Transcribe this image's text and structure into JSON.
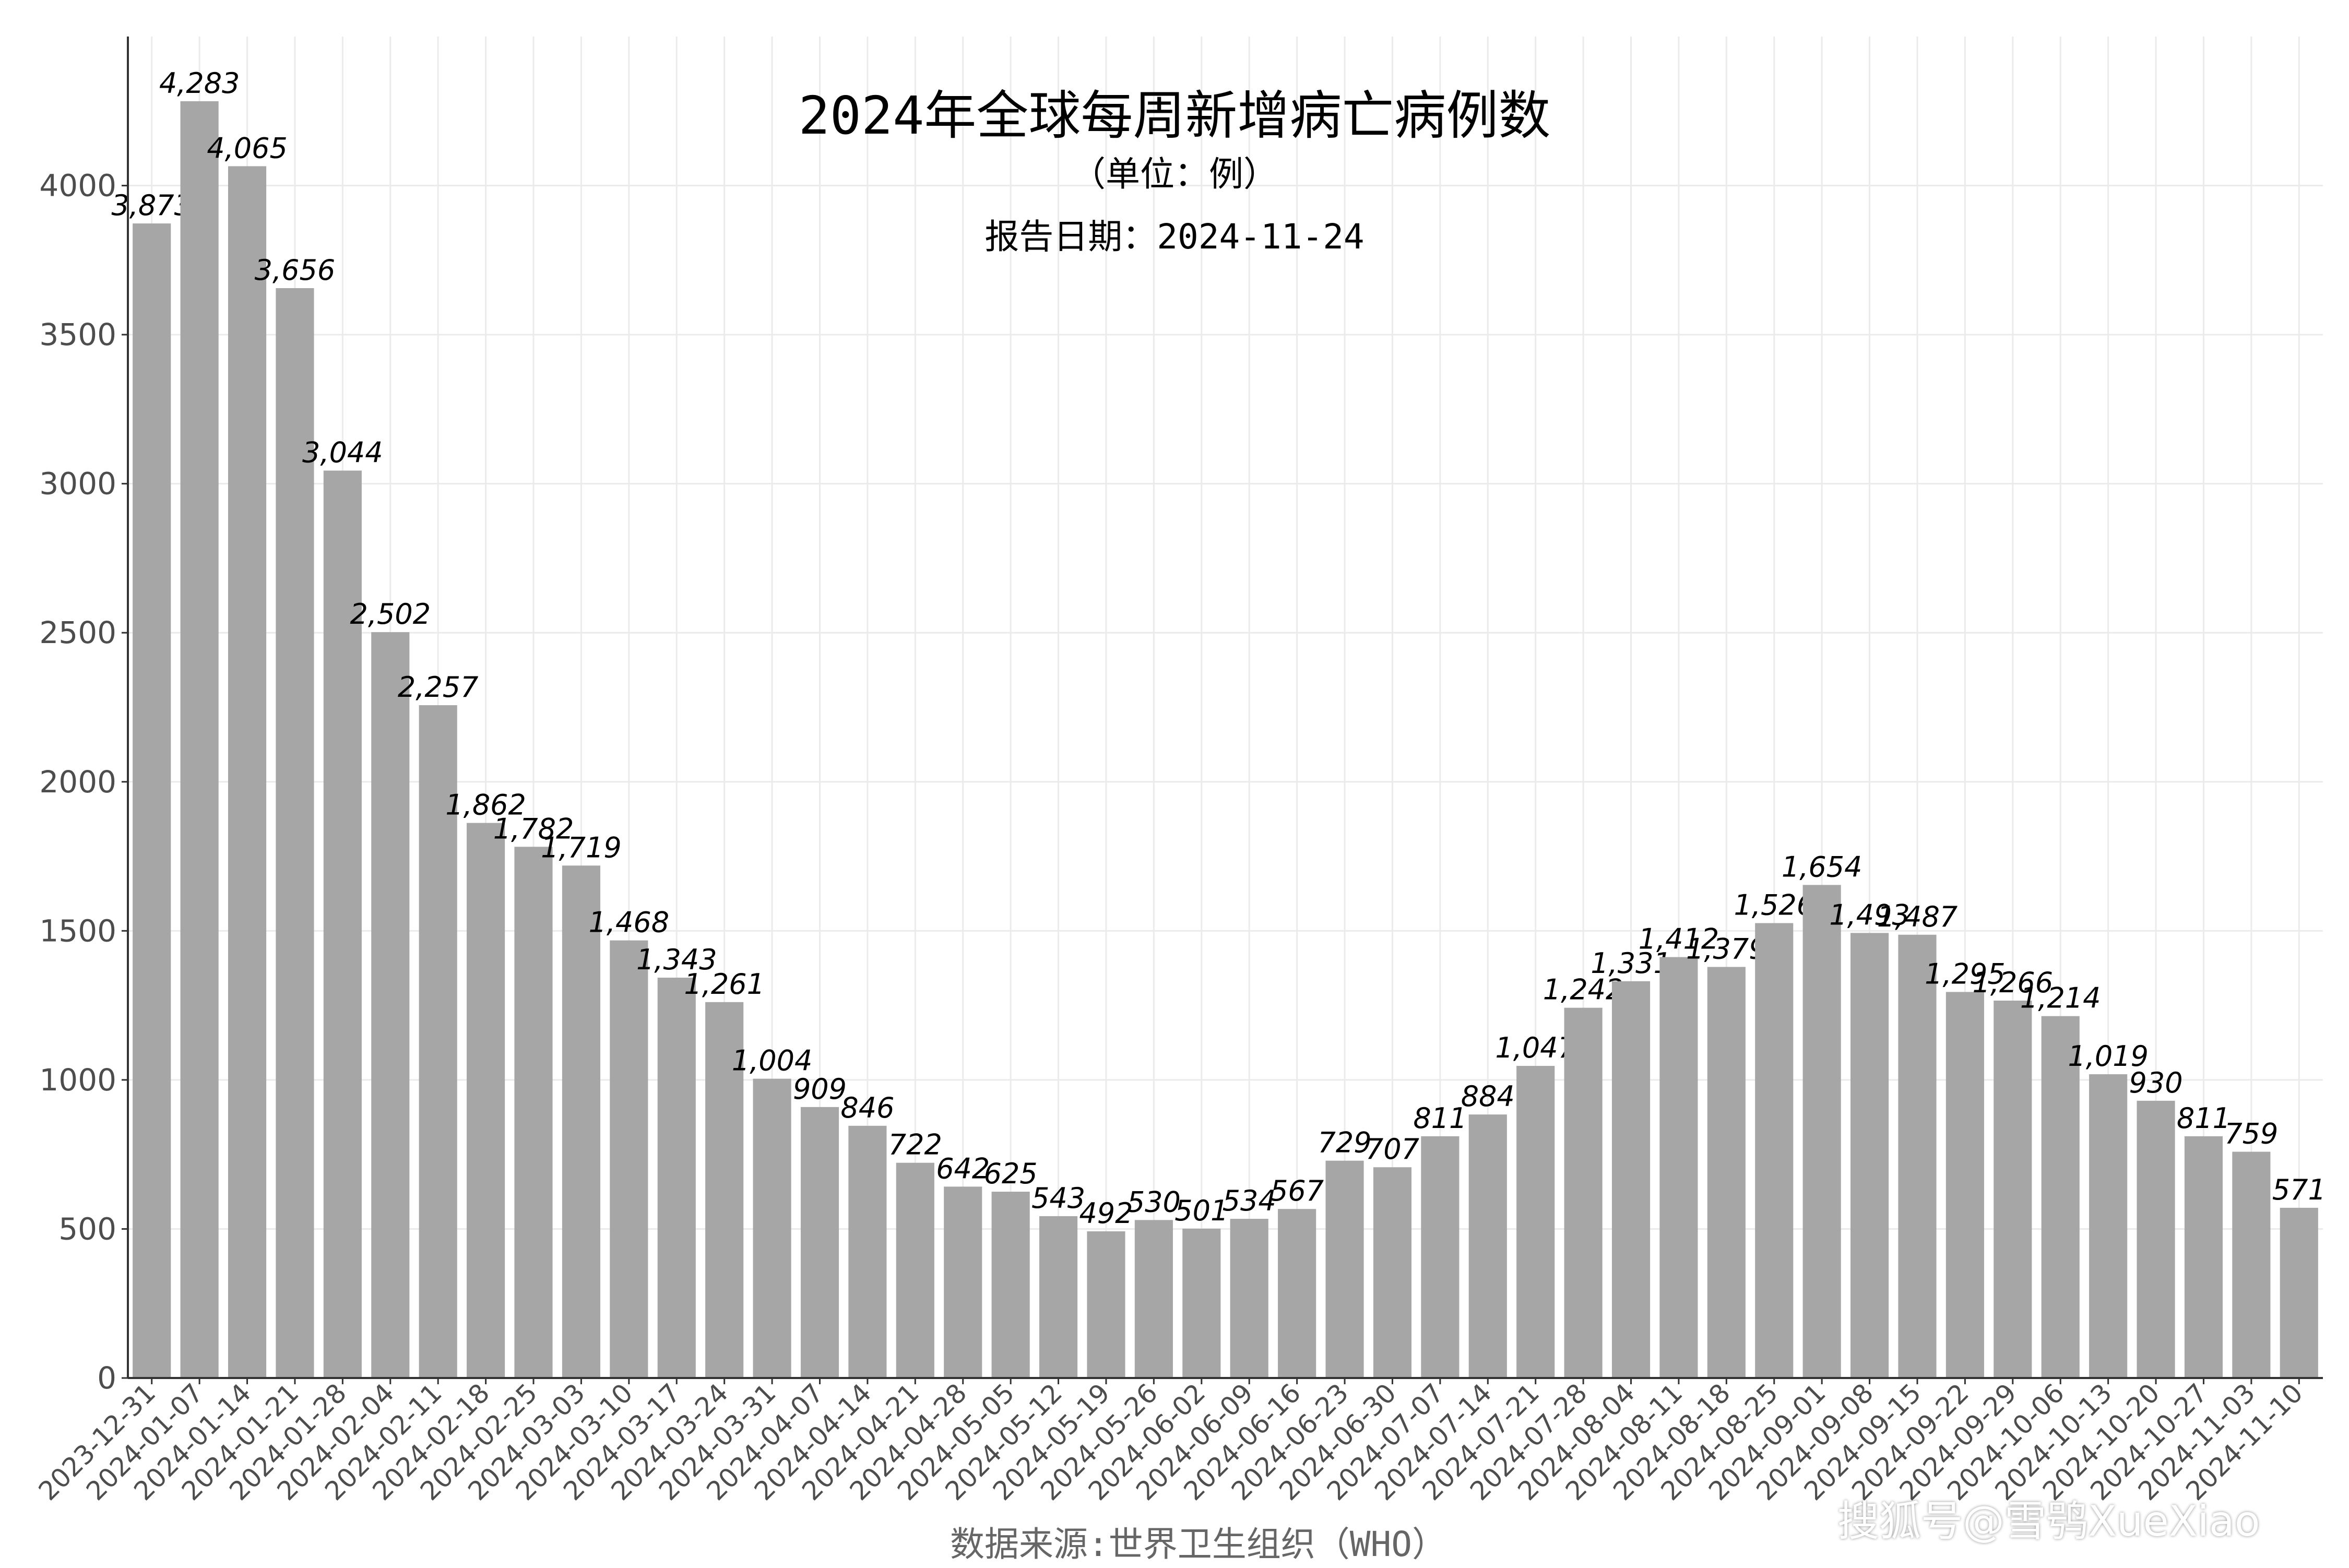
{
  "chart_data": {
    "type": "bar",
    "title": "2024年全球每周新增病亡病例数",
    "subtitle": "（单位：例）",
    "report_date": "报告日期：2024-11-24",
    "caption": "数据来源:世界卫生组织（WHO）",
    "xlabel": "",
    "ylabel": "",
    "ylim": [
      0,
      4500
    ],
    "yticks": [
      0,
      500,
      1000,
      1500,
      2000,
      2500,
      3000,
      3500,
      4000
    ],
    "grid": true,
    "bar_color": "#a6a6a6",
    "categories": [
      "2023-12-31",
      "2024-01-07",
      "2024-01-14",
      "2024-01-21",
      "2024-01-28",
      "2024-02-04",
      "2024-02-11",
      "2024-02-18",
      "2024-02-25",
      "2024-03-03",
      "2024-03-10",
      "2024-03-17",
      "2024-03-24",
      "2024-03-31",
      "2024-04-07",
      "2024-04-14",
      "2024-04-21",
      "2024-04-28",
      "2024-05-05",
      "2024-05-12",
      "2024-05-19",
      "2024-05-26",
      "2024-06-02",
      "2024-06-09",
      "2024-06-16",
      "2024-06-23",
      "2024-06-30",
      "2024-07-07",
      "2024-07-14",
      "2024-07-21",
      "2024-07-28",
      "2024-08-04",
      "2024-08-11",
      "2024-08-18",
      "2024-08-25",
      "2024-09-01",
      "2024-09-08",
      "2024-09-15",
      "2024-09-22",
      "2024-09-29",
      "2024-10-06",
      "2024-10-13",
      "2024-10-20",
      "2024-10-27",
      "2024-11-03",
      "2024-11-10"
    ],
    "values": [
      3873,
      4283,
      4065,
      3656,
      3044,
      2502,
      2257,
      1862,
      1782,
      1719,
      1468,
      1343,
      1261,
      1004,
      909,
      846,
      722,
      642,
      625,
      543,
      492,
      530,
      501,
      534,
      567,
      729,
      707,
      811,
      884,
      1047,
      1242,
      1331,
      1412,
      1379,
      1526,
      1654,
      1493,
      1487,
      1295,
      1266,
      1214,
      1019,
      930,
      811,
      759,
      571
    ],
    "value_labels": [
      "3,873",
      "4,283",
      "4,065",
      "3,656",
      "3,044",
      "2,502",
      "2,257",
      "1,862",
      "1,782",
      "1,719",
      "1,468",
      "1,343",
      "1,261",
      "1,004",
      "909",
      "846",
      "722",
      "642",
      "625",
      "543",
      "492",
      "530",
      "501",
      "534",
      "567",
      "729",
      "707",
      "811",
      "884",
      "1,047",
      "1,242",
      "1,331",
      "1,412",
      "1,379",
      "1,526",
      "1,654",
      "1,493",
      "1,487",
      "1,295",
      "1,266",
      "1,214",
      "1,019",
      "930",
      "811",
      "759",
      "571"
    ]
  },
  "watermark": "搜狐号@雪鸮XueXiao"
}
